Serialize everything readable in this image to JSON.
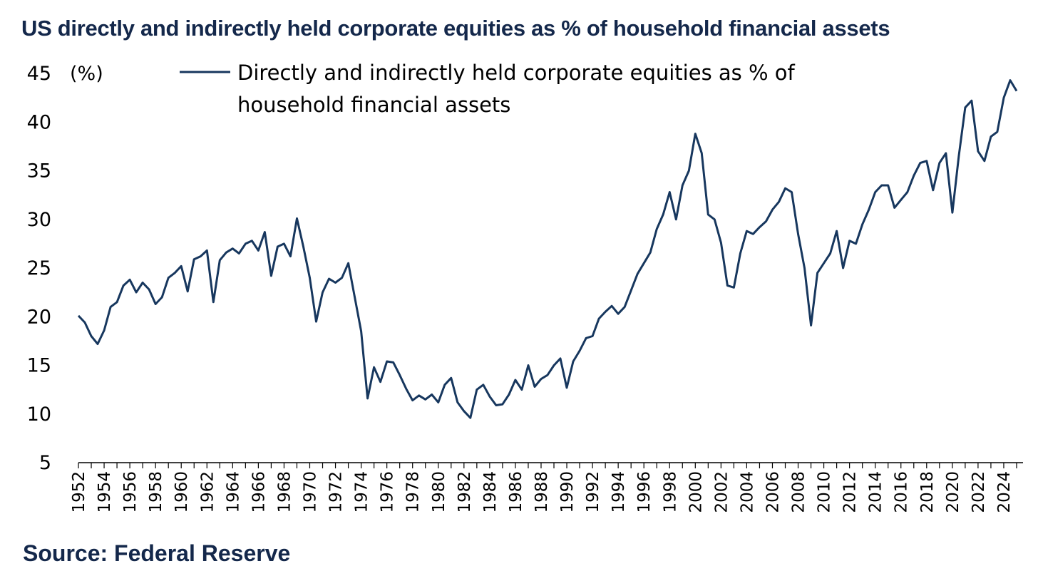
{
  "title": "US directly and indirectly held corporate equities as % of household financial assets",
  "source": "Source: Federal Reserve",
  "colors": {
    "series": "#17375e",
    "title": "#14284b"
  },
  "chart_data": {
    "type": "line",
    "unit_label": "(%)",
    "ylim": [
      5,
      45
    ],
    "yticks": [
      "45",
      "40",
      "35",
      "30",
      "25",
      "20",
      "15",
      "10",
      "5"
    ],
    "xlim": [
      1952,
      2025.5
    ],
    "xticks": [
      "1952",
      "1954",
      "1956",
      "1958",
      "1960",
      "1962",
      "1964",
      "1966",
      "1968",
      "1970",
      "1972",
      "1974",
      "1976",
      "1978",
      "1980",
      "1982",
      "1984",
      "1986",
      "1988",
      "1990",
      "1992",
      "1994",
      "1996",
      "1998",
      "2000",
      "2002",
      "2004",
      "2006",
      "2008",
      "2010",
      "2012",
      "2014",
      "2016",
      "2018",
      "2020",
      "2022",
      "2024"
    ],
    "grid": false,
    "legend_position": "top",
    "series": [
      {
        "name": "Directly and indirectly held corporate equities as % of household financial assets",
        "color": "#17375e",
        "x": [
          1952.0,
          1952.5,
          1953.0,
          1953.5,
          1954.0,
          1954.5,
          1955.0,
          1955.5,
          1956.0,
          1956.5,
          1957.0,
          1957.5,
          1958.0,
          1958.5,
          1959.0,
          1959.5,
          1960.0,
          1960.5,
          1961.0,
          1961.5,
          1962.0,
          1962.5,
          1963.0,
          1963.5,
          1964.0,
          1964.5,
          1965.0,
          1965.5,
          1966.0,
          1966.5,
          1967.0,
          1967.5,
          1968.0,
          1968.5,
          1969.0,
          1969.5,
          1970.0,
          1970.5,
          1971.0,
          1971.5,
          1972.0,
          1972.5,
          1973.0,
          1973.5,
          1974.0,
          1974.5,
          1975.0,
          1975.5,
          1976.0,
          1976.5,
          1977.0,
          1977.5,
          1978.0,
          1978.5,
          1979.0,
          1979.5,
          1980.0,
          1980.5,
          1981.0,
          1981.5,
          1982.0,
          1982.5,
          1983.0,
          1983.5,
          1984.0,
          1984.5,
          1985.0,
          1985.5,
          1986.0,
          1986.5,
          1987.0,
          1987.5,
          1988.0,
          1988.5,
          1989.0,
          1989.5,
          1990.0,
          1990.5,
          1991.0,
          1991.5,
          1992.0,
          1992.5,
          1993.0,
          1993.5,
          1994.0,
          1994.5,
          1995.0,
          1995.5,
          1996.0,
          1996.5,
          1997.0,
          1997.5,
          1998.0,
          1998.5,
          1999.0,
          1999.5,
          2000.0,
          2000.5,
          2001.0,
          2001.5,
          2002.0,
          2002.5,
          2003.0,
          2003.5,
          2004.0,
          2004.5,
          2005.0,
          2005.5,
          2006.0,
          2006.5,
          2007.0,
          2007.5,
          2008.0,
          2008.5,
          2009.0,
          2009.5,
          2010.0,
          2010.5,
          2011.0,
          2011.5,
          2012.0,
          2012.5,
          2013.0,
          2013.5,
          2014.0,
          2014.5,
          2015.0,
          2015.5,
          2016.0,
          2016.5,
          2017.0,
          2017.5,
          2018.0,
          2018.5,
          2019.0,
          2019.5,
          2020.0,
          2020.5,
          2021.0,
          2021.5,
          2022.0,
          2022.5,
          2023.0,
          2023.5,
          2024.0,
          2024.5,
          2025.0
        ],
        "y": [
          20.1,
          19.4,
          18.0,
          17.2,
          18.6,
          21.0,
          21.5,
          23.2,
          23.8,
          22.5,
          23.5,
          22.8,
          21.3,
          22.0,
          24.0,
          24.5,
          25.2,
          22.6,
          25.9,
          26.2,
          26.8,
          21.5,
          25.8,
          26.6,
          27.0,
          26.5,
          27.5,
          27.8,
          26.8,
          28.7,
          24.2,
          27.2,
          27.5,
          26.2,
          30.1,
          27.2,
          24.0,
          19.5,
          22.5,
          23.9,
          23.5,
          24.0,
          25.5,
          22.0,
          18.5,
          11.6,
          14.8,
          13.3,
          15.4,
          15.3,
          14.0,
          12.6,
          11.4,
          11.9,
          11.5,
          12.0,
          11.2,
          13.0,
          13.7,
          11.2,
          10.3,
          9.6,
          12.5,
          13.0,
          11.8,
          10.9,
          11.0,
          12.0,
          13.5,
          12.5,
          15.0,
          12.8,
          13.6,
          14.0,
          15.0,
          15.7,
          12.7,
          15.4,
          16.5,
          17.8,
          18.0,
          19.8,
          20.5,
          21.1,
          20.3,
          21.0,
          22.7,
          24.4,
          25.5,
          26.6,
          29.0,
          30.5,
          32.8,
          30.0,
          33.5,
          35.0,
          38.8,
          36.8,
          30.5,
          30.0,
          27.6,
          23.2,
          23.0,
          26.5,
          28.8,
          28.5,
          29.2,
          29.8,
          31.0,
          31.8,
          33.2,
          32.8,
          28.5,
          25.0,
          19.1,
          24.5,
          25.5,
          26.5,
          28.8,
          25.0,
          27.8,
          27.5,
          29.5,
          31.0,
          32.8,
          33.5,
          33.5,
          31.2,
          32.0,
          32.8,
          34.5,
          35.8,
          36.0,
          33.0,
          35.8,
          36.8,
          30.7,
          36.5,
          41.5,
          42.2,
          37.0,
          36.0,
          38.5,
          39.0,
          42.5,
          44.3,
          43.2
        ]
      }
    ]
  }
}
